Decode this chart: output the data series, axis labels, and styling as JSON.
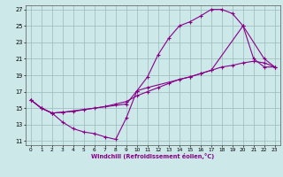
{
  "xlabel": "Windchill (Refroidissement éolien,°C)",
  "bg_color": "#cce8e8",
  "line_color": "#880088",
  "grid_color": "#99bbbb",
  "xlim": [
    -0.5,
    23.5
  ],
  "ylim": [
    10.5,
    27.5
  ],
  "xticks": [
    0,
    1,
    2,
    3,
    4,
    5,
    6,
    7,
    8,
    9,
    10,
    11,
    12,
    13,
    14,
    15,
    16,
    17,
    18,
    19,
    20,
    21,
    22,
    23
  ],
  "yticks": [
    11,
    13,
    15,
    17,
    19,
    21,
    23,
    25,
    27
  ],
  "line1_x": [
    0,
    1,
    2,
    3,
    4,
    5,
    6,
    7,
    8,
    9,
    10,
    11,
    12,
    13,
    14,
    15,
    16,
    17,
    18,
    19,
    20,
    21,
    22,
    23
  ],
  "line1_y": [
    16.0,
    15.0,
    14.4,
    13.3,
    12.5,
    12.1,
    11.9,
    11.5,
    11.2,
    13.8,
    17.1,
    18.8,
    21.5,
    23.5,
    25.0,
    25.5,
    26.2,
    27.0,
    27.0,
    26.5,
    25.0,
    21.0,
    20.0,
    20.0
  ],
  "line2_x": [
    0,
    1,
    2,
    3,
    4,
    5,
    6,
    7,
    8,
    9,
    10,
    11,
    12,
    13,
    14,
    15,
    16,
    17,
    18,
    19,
    20,
    21,
    22,
    23
  ],
  "line2_y": [
    16.0,
    15.0,
    14.4,
    14.5,
    14.6,
    14.8,
    15.0,
    15.2,
    15.5,
    15.8,
    16.5,
    17.0,
    17.5,
    18.0,
    18.5,
    18.8,
    19.2,
    19.6,
    20.0,
    20.2,
    20.5,
    20.7,
    20.5,
    20.0
  ],
  "line3_x": [
    0,
    1,
    2,
    3,
    9,
    10,
    11,
    15,
    16,
    17,
    20,
    22,
    23
  ],
  "line3_y": [
    16.0,
    15.0,
    14.4,
    14.5,
    15.5,
    17.1,
    17.5,
    18.8,
    19.2,
    19.6,
    25.0,
    21.0,
    20.0
  ]
}
